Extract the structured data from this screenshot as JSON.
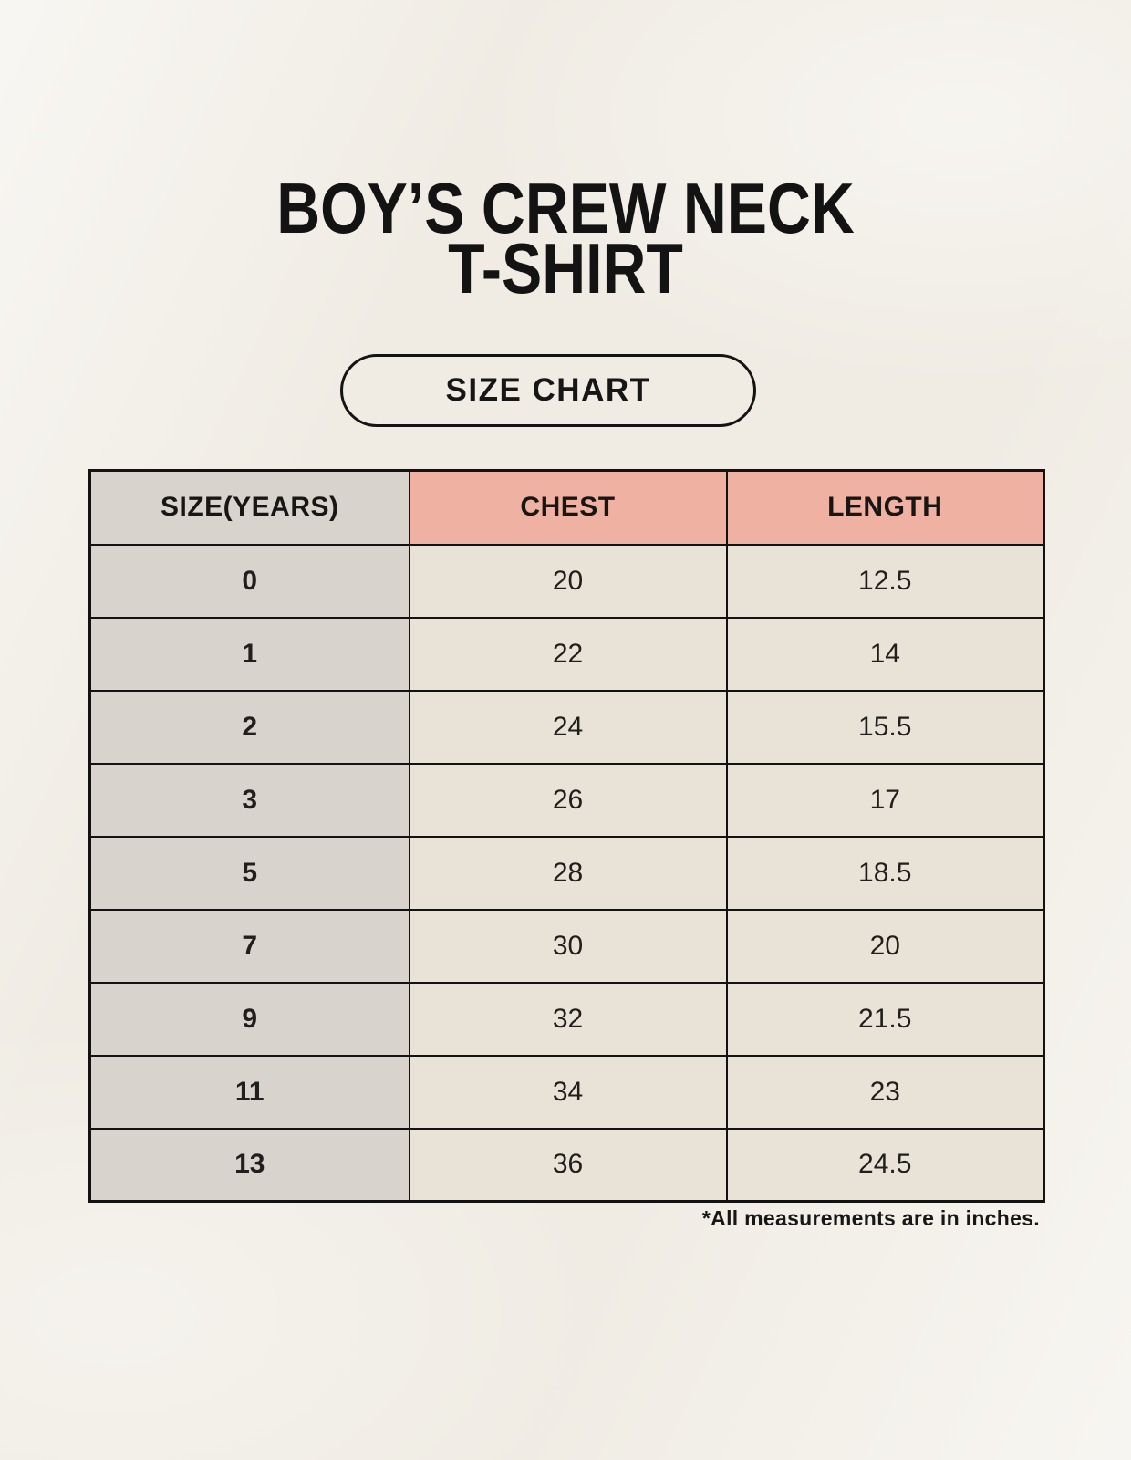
{
  "page": {
    "title": "BOY’S CREW NECK\nT-SHIRT",
    "badge_label": "SIZE CHART",
    "footnote": "*All measurements are in inches."
  },
  "colors": {
    "background": "#f0ece4",
    "header_accent": "#efb1a1",
    "size_column": "#d9d3ce",
    "data_cell": "#e9e2d7",
    "border": "#121212",
    "text": "#1c1b19"
  },
  "table": {
    "headers": [
      "SIZE(YEARS)",
      "CHEST",
      "LENGTH"
    ],
    "rows": [
      [
        "0",
        "20",
        "12.5"
      ],
      [
        "1",
        "22",
        "14"
      ],
      [
        "2",
        "24",
        "15.5"
      ],
      [
        "3",
        "26",
        "17"
      ],
      [
        "5",
        "28",
        "18.5"
      ],
      [
        "7",
        "30",
        "20"
      ],
      [
        "9",
        "32",
        "21.5"
      ],
      [
        "11",
        "34",
        "23"
      ],
      [
        "13",
        "36",
        "24.5"
      ]
    ]
  },
  "chart_data": {
    "type": "table",
    "title": "BOY’S CREW NECK T-SHIRT — SIZE CHART",
    "columns": [
      "SIZE(YEARS)",
      "CHEST",
      "LENGTH"
    ],
    "units": "inches",
    "rows": [
      {
        "size_years": "0",
        "chest": 20,
        "length": 12.5
      },
      {
        "size_years": "1",
        "chest": 22,
        "length": 14
      },
      {
        "size_years": "2",
        "chest": 24,
        "length": 15.5
      },
      {
        "size_years": "3",
        "chest": 26,
        "length": 17
      },
      {
        "size_years": "5",
        "chest": 28,
        "length": 18.5
      },
      {
        "size_years": "7",
        "chest": 30,
        "length": 20
      },
      {
        "size_years": "9",
        "chest": 32,
        "length": 21.5
      },
      {
        "size_years": "11",
        "chest": 34,
        "length": 23
      },
      {
        "size_years": "13",
        "chest": 36,
        "length": 24.5
      }
    ],
    "note": "*All measurements are in inches."
  }
}
